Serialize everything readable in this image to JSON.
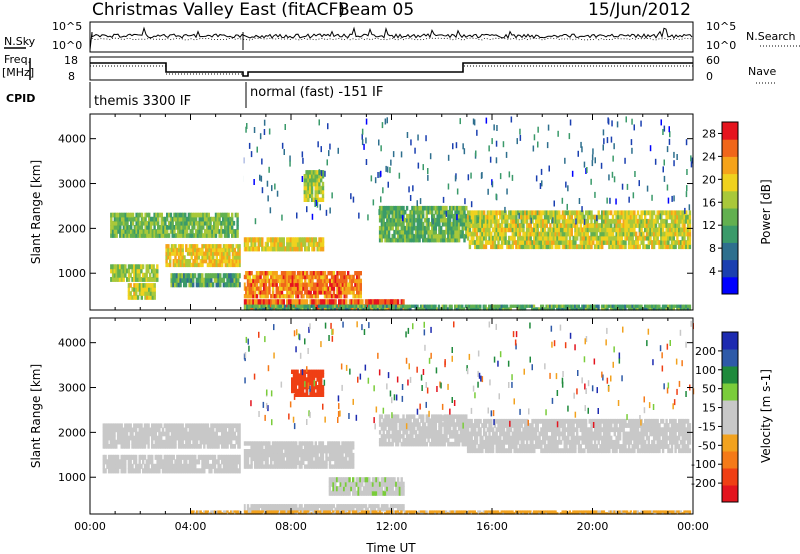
{
  "header": {
    "title": "Christmas Valley East (fitACF)",
    "beam": "Beam 05",
    "date": "15/Jun/2012"
  },
  "params": {
    "nsky_label": "N.Sky",
    "nsearch_label": "N.Search",
    "freq_label_1": "Freq.",
    "freq_label_2": "[MHz]",
    "nave_label": "Nave",
    "cpid_label": "CPID",
    "left_ticks_top": [
      "10^5",
      "10^0"
    ],
    "right_ticks_top": [
      "10^5",
      "10^0"
    ],
    "freq_ticks": [
      "18",
      "8"
    ],
    "nave_ticks": [
      "60",
      "0"
    ],
    "cpid_1": "themis 3300 IF",
    "cpid_2": "normal (fast) -151 IF"
  },
  "colors": {
    "power_scale": [
      "#0000ff",
      "#1a3fb0",
      "#2e6f8e",
      "#3a9a6a",
      "#62b050",
      "#a9c83a",
      "#f0d21e",
      "#f5a31a",
      "#f0661a",
      "#e6141e"
    ],
    "velocity_scale": [
      "#1d2bb0",
      "#2e5aa8",
      "#1f8a3c",
      "#7acc3a",
      "#c8c8c8",
      "#c8c8c8",
      "#f2a21e",
      "#f57a18",
      "#ef3f14",
      "#e3141e"
    ]
  },
  "chart_data": [
    {
      "type": "heatmap",
      "name": "power",
      "xlabel": "",
      "ylabel": "Slant Range [km]",
      "xlim": [
        0,
        24
      ],
      "ylim": [
        180,
        4550
      ],
      "yticks": [
        "1000",
        "2000",
        "3000",
        "4000"
      ],
      "colorbar_label": "Power [dB]",
      "colorbar_ticks": [
        "4",
        "8",
        "12",
        "16",
        "20",
        "24",
        "28"
      ],
      "colorbar_range": [
        0,
        30
      ],
      "bands": [
        {
          "t0": 0.8,
          "t1": 5.9,
          "r0": 1800,
          "r1": 2350,
          "v": 14
        },
        {
          "t0": 0.8,
          "t1": 2.7,
          "r0": 820,
          "r1": 1200,
          "v": 16
        },
        {
          "t0": 1.5,
          "t1": 2.6,
          "r0": 420,
          "r1": 780,
          "v": 18
        },
        {
          "t0": 3.0,
          "t1": 6.0,
          "r0": 1150,
          "r1": 1650,
          "v": 20
        },
        {
          "t0": 3.2,
          "t1": 6.0,
          "r0": 700,
          "r1": 1000,
          "v": 12
        },
        {
          "t0": 6.1,
          "t1": 9.3,
          "r0": 1500,
          "r1": 1800,
          "v": 19
        },
        {
          "t0": 6.1,
          "t1": 10.8,
          "r0": 450,
          "r1": 1050,
          "v": 24
        },
        {
          "t0": 6.1,
          "t1": 12.5,
          "r0": 200,
          "r1": 420,
          "v": 26
        },
        {
          "t0": 8.5,
          "t1": 9.3,
          "r0": 2600,
          "r1": 3300,
          "v": 16
        },
        {
          "t0": 11.5,
          "t1": 15.0,
          "r0": 1700,
          "r1": 2500,
          "v": 13
        },
        {
          "t0": 15.0,
          "t1": 23.9,
          "r0": 1550,
          "r1": 2400,
          "v": 18
        },
        {
          "t0": 6.0,
          "t1": 23.9,
          "r0": 180,
          "r1": 300,
          "v": 12
        }
      ]
    },
    {
      "type": "heatmap",
      "name": "velocity",
      "xlabel": "Time UT",
      "ylabel": "Slant Range [km]",
      "xlim": [
        0,
        24
      ],
      "ylim": [
        180,
        4550
      ],
      "xticks": [
        "00:00",
        "04:00",
        "08:00",
        "12:00",
        "16:00",
        "20:00",
        "00:00"
      ],
      "yticks": [
        "1000",
        "2000",
        "3000",
        "4000"
      ],
      "colorbar_label": "Velocity [m s-1]",
      "colorbar_ticks": [
        "200",
        "100",
        "50",
        "15",
        "-15",
        "-50",
        "-100",
        "-200"
      ],
      "colorbar_range": [
        -250,
        250
      ],
      "bands": [
        {
          "t0": 0.5,
          "t1": 6.0,
          "r0": 1650,
          "r1": 2200,
          "v": 0
        },
        {
          "t0": 0.5,
          "t1": 6.0,
          "r0": 1100,
          "r1": 1500,
          "v": 0
        },
        {
          "t0": 6.1,
          "t1": 10.5,
          "r0": 1200,
          "r1": 1800,
          "v": 0
        },
        {
          "t0": 8.0,
          "t1": 9.3,
          "r0": 2800,
          "r1": 3400,
          "v": -180
        },
        {
          "t0": 9.5,
          "t1": 12.5,
          "r0": 600,
          "r1": 1000,
          "v": 40
        },
        {
          "t0": 6.1,
          "t1": 12.5,
          "r0": 250,
          "r1": 400,
          "v": 35
        },
        {
          "t0": 11.5,
          "t1": 15.0,
          "r0": 1700,
          "r1": 2400,
          "v": 0
        },
        {
          "t0": 15.0,
          "t1": 23.9,
          "r0": 1550,
          "r1": 2300,
          "v": 0
        },
        {
          "t0": 4.0,
          "t1": 23.9,
          "r0": 180,
          "r1": 260,
          "v": -60
        }
      ]
    }
  ]
}
